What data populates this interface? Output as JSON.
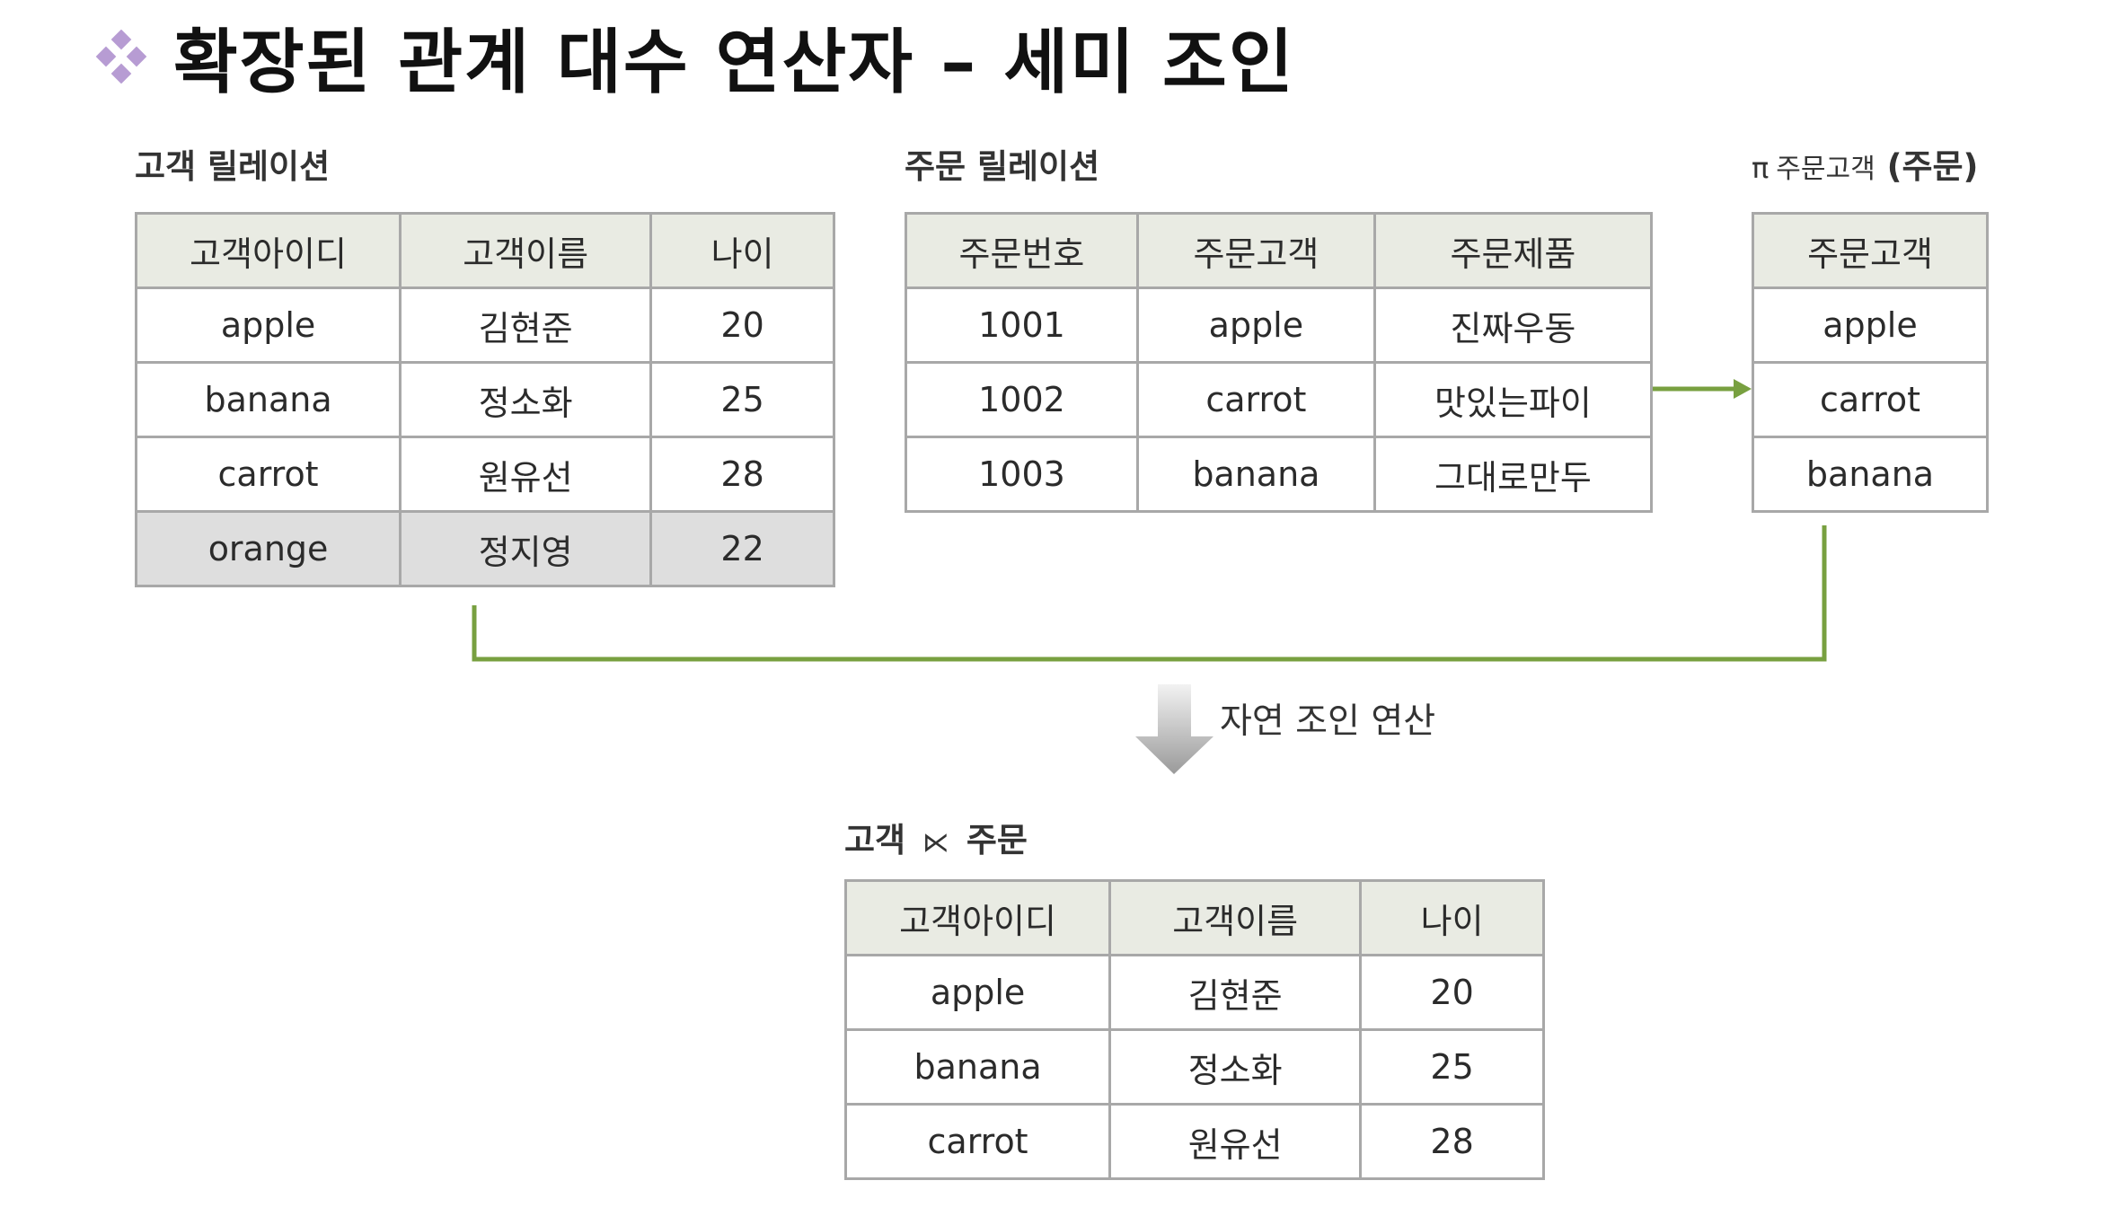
{
  "title": "확장된 관계 대수 연산자 – 세미 조인",
  "colors": {
    "bullet": "#b79cd3",
    "connector": "#78a040",
    "header_bg": "#e9ebe3",
    "excluded_row_bg": "#dedede",
    "border": "#a8a8a8"
  },
  "customer": {
    "label": "고객 릴레이션",
    "columns": [
      "고객아이디",
      "고객이름",
      "나이"
    ],
    "rows": [
      [
        "apple",
        "김현준",
        "20"
      ],
      [
        "banana",
        "정소화",
        "25"
      ],
      [
        "carrot",
        "원유선",
        "28"
      ],
      [
        "orange",
        "정지영",
        "22"
      ]
    ]
  },
  "order": {
    "label": "주문 릴레이션",
    "columns": [
      "주문번호",
      "주문고객",
      "주문제품"
    ],
    "rows": [
      [
        "1001",
        "apple",
        "진짜우동"
      ],
      [
        "1002",
        "carrot",
        "맛있는파이"
      ],
      [
        "1003",
        "banana",
        "그대로만두"
      ]
    ]
  },
  "projection": {
    "pi_symbol": "π",
    "label_small": "주문고객",
    "label_bold": "(주문)",
    "columns": [
      "주문고객"
    ],
    "rows": [
      [
        "apple"
      ],
      [
        "carrot"
      ],
      [
        "banana"
      ]
    ]
  },
  "operation_label": "자연 조인 연산",
  "result": {
    "label_left": "고객",
    "operator": "⋉",
    "label_right": "주문",
    "columns": [
      "고객아이디",
      "고객이름",
      "나이"
    ],
    "rows": [
      [
        "apple",
        "김현준",
        "20"
      ],
      [
        "banana",
        "정소화",
        "25"
      ],
      [
        "carrot",
        "원유선",
        "28"
      ]
    ]
  }
}
